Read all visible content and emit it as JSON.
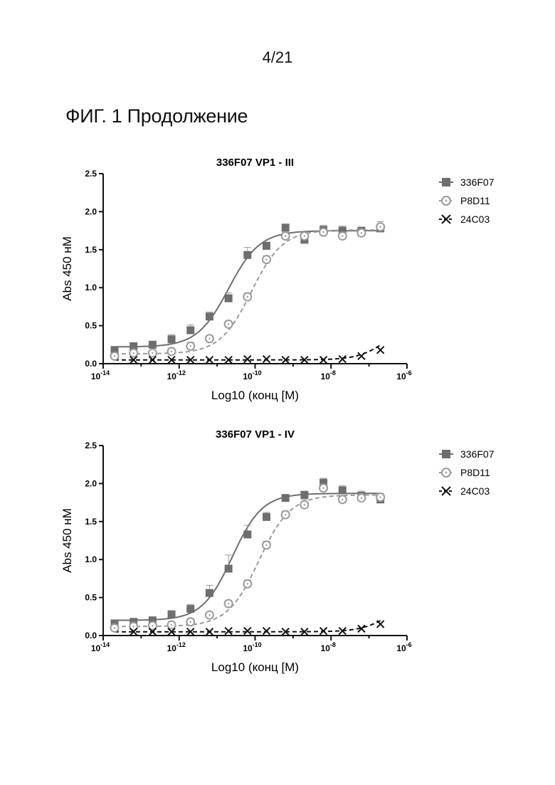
{
  "page_number": "4/21",
  "figure_caption": "ФИГ. 1 Продолжение",
  "colors": {
    "s336F07": "#6e6e6e",
    "sP8D11": "#9a9a9a",
    "s24C03": "#111111"
  },
  "chart_data": [
    {
      "type": "scatter",
      "title": "336F07 VP1 - III",
      "xlabel": "Log10 (конц [M)",
      "ylabel": "Abs 450 нМ",
      "x_scale": "log",
      "xlim_exp": [
        -14,
        -6
      ],
      "ylim": [
        0,
        2.5
      ],
      "x_tick_exponents": [
        -14,
        -12,
        -10,
        -8,
        -6
      ],
      "y_ticks": [
        "0.0",
        "0.5",
        "1.0",
        "1.5",
        "2.0",
        "2.5"
      ],
      "legend_position": "right",
      "x_log10": [
        -13.7,
        -13.2,
        -12.7,
        -12.2,
        -11.7,
        -11.2,
        -10.7,
        -10.2,
        -9.7,
        -9.2,
        -8.7,
        -8.2,
        -7.7,
        -7.2,
        -6.7
      ],
      "series": [
        {
          "name": "336F07",
          "marker": "square",
          "line": "solid",
          "values": [
            0.18,
            0.23,
            0.25,
            0.32,
            0.44,
            0.62,
            0.86,
            1.43,
            1.55,
            1.79,
            1.63,
            1.76,
            1.75,
            1.75,
            1.78
          ],
          "error": [
            0.03,
            0.03,
            0.04,
            0.06,
            0.07,
            0.06,
            0.07,
            0.1,
            0.05,
            0.04,
            0.06,
            0.06,
            0.06,
            0.04,
            0.04
          ],
          "fit": {
            "bottom": 0.22,
            "top": 1.75,
            "log_ec50": -10.7,
            "hill": 1.05
          }
        },
        {
          "name": "P8D11",
          "marker": "open-circle",
          "line": "dashed",
          "values": [
            0.1,
            0.14,
            0.14,
            0.16,
            0.23,
            0.33,
            0.52,
            0.88,
            1.37,
            1.68,
            1.68,
            1.73,
            1.68,
            1.72,
            1.8
          ],
          "error": [
            0.03,
            0.02,
            0.03,
            0.04,
            0.05,
            0.04,
            0.04,
            0.05,
            0.05,
            0.05,
            0.05,
            0.05,
            0.05,
            0.05,
            0.07
          ],
          "fit": {
            "bottom": 0.13,
            "top": 1.76,
            "log_ec50": -10.1,
            "hill": 1.05
          }
        },
        {
          "name": "24C03",
          "marker": "x",
          "line": "dashed",
          "values": [
            null,
            0.05,
            0.05,
            0.05,
            0.05,
            0.05,
            0.05,
            0.06,
            0.06,
            0.05,
            0.05,
            0.05,
            0.06,
            0.1,
            0.18
          ],
          "error": [],
          "fit": {
            "bottom": 0.05,
            "top": 0.5,
            "log_ec50": -6.6,
            "hill": 1.2
          }
        }
      ]
    },
    {
      "type": "scatter",
      "title": "336F07 VP1 - IV",
      "xlabel": "Log10 (конц [M)",
      "ylabel": "Abs 450 нМ",
      "x_scale": "log",
      "xlim_exp": [
        -14,
        -6
      ],
      "ylim": [
        0,
        2.5
      ],
      "x_tick_exponents": [
        -14,
        -12,
        -10,
        -8,
        -6
      ],
      "y_ticks": [
        "0.0",
        "0.5",
        "1.0",
        "1.5",
        "2.0",
        "2.5"
      ],
      "legend_position": "right",
      "x_log10": [
        -13.7,
        -13.2,
        -12.7,
        -12.2,
        -11.7,
        -11.2,
        -10.7,
        -10.2,
        -9.7,
        -9.2,
        -8.7,
        -8.2,
        -7.7,
        -7.2,
        -6.7
      ],
      "series": [
        {
          "name": "336F07",
          "marker": "square",
          "line": "solid",
          "values": [
            0.16,
            0.18,
            0.2,
            0.28,
            0.35,
            0.56,
            0.88,
            1.33,
            1.56,
            1.81,
            1.85,
            2.01,
            1.91,
            1.84,
            1.79
          ],
          "error": [
            0.02,
            0.02,
            0.03,
            0.04,
            0.06,
            0.1,
            0.18,
            0.12,
            0.06,
            0.04,
            0.05,
            0.06,
            0.06,
            0.06,
            0.06
          ],
          "fit": {
            "bottom": 0.2,
            "top": 1.87,
            "log_ec50": -10.6,
            "hill": 1.1
          }
        },
        {
          "name": "P8D11",
          "marker": "open-circle",
          "line": "dashed",
          "values": [
            0.1,
            0.12,
            0.13,
            0.14,
            0.18,
            0.27,
            0.42,
            0.68,
            1.19,
            1.59,
            1.72,
            1.94,
            1.79,
            1.81,
            1.82
          ],
          "error": [
            0.02,
            0.02,
            0.02,
            0.03,
            0.04,
            0.04,
            0.04,
            0.05,
            0.05,
            0.05,
            0.07,
            0.05,
            0.05,
            0.06,
            0.05
          ],
          "fit": {
            "bottom": 0.12,
            "top": 1.85,
            "log_ec50": -9.9,
            "hill": 1.05
          }
        },
        {
          "name": "24C03",
          "marker": "x",
          "line": "dashed",
          "values": [
            null,
            0.05,
            0.05,
            0.05,
            0.05,
            0.05,
            0.06,
            0.06,
            0.06,
            0.05,
            0.05,
            0.06,
            0.06,
            0.09,
            0.15
          ],
          "error": [],
          "fit": {
            "bottom": 0.05,
            "top": 0.45,
            "log_ec50": -6.5,
            "hill": 1.2
          }
        }
      ]
    }
  ]
}
